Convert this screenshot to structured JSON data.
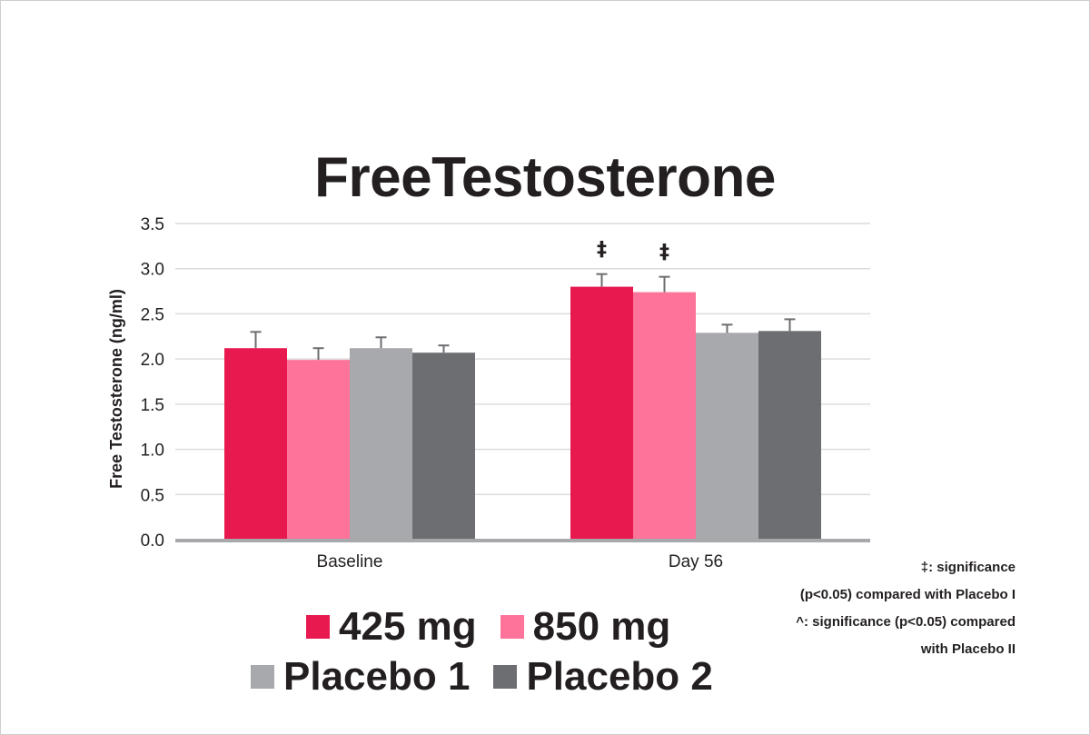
{
  "chart_data": {
    "type": "bar",
    "title": "FreeTestosterone",
    "ylabel": "Free Testosterone (ng/ml)",
    "xlabel": "",
    "ylim": [
      0,
      3.5
    ],
    "yticks": [
      "0.0",
      "0.5",
      "1.0",
      "1.5",
      "2.0",
      "2.5",
      "3.0",
      "3.5"
    ],
    "categories": [
      "Baseline",
      "Day 56"
    ],
    "series": [
      {
        "name": "425 mg",
        "color": "#e8194f",
        "values": [
          2.12,
          2.8
        ],
        "errors": [
          0.18,
          0.14
        ],
        "markers": [
          "",
          "‡"
        ]
      },
      {
        "name": "850 mg",
        "color": "#fe7399",
        "values": [
          1.99,
          2.74
        ],
        "errors": [
          0.13,
          0.17
        ],
        "markers": [
          "",
          "‡"
        ]
      },
      {
        "name": "Placebo 1",
        "color": "#a7a9ac",
        "values": [
          2.12,
          2.29
        ],
        "errors": [
          0.12,
          0.09
        ],
        "markers": [
          "",
          ""
        ]
      },
      {
        "name": "Placebo 2",
        "color": "#6d6e71",
        "values": [
          2.07,
          2.31
        ],
        "errors": [
          0.08,
          0.13
        ],
        "markers": [
          "",
          ""
        ]
      }
    ],
    "grid": true
  },
  "legend": {
    "items": [
      "425 mg",
      "850 mg",
      "Placebo 1",
      "Placebo 2"
    ]
  },
  "notes": {
    "line1": "‡: significance",
    "line2": "(p<0.05) compared with Placebo I",
    "line3": "^: significance (p<0.05) compared",
    "line4": "with Placebo II"
  },
  "colors": {
    "text": "#231f20",
    "grid": "#dcdcdc",
    "axis": "#a7a9ac",
    "error": "#6d6e71"
  }
}
